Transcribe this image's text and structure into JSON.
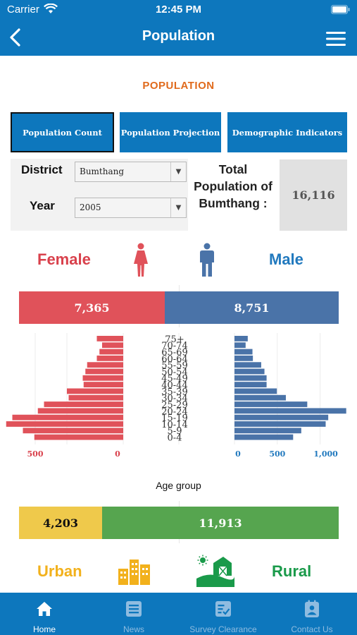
{
  "status_bar": {
    "carrier": "Carrier",
    "time": "12:45 PM"
  },
  "nav": {
    "title": "Population"
  },
  "section_title": "POPULATION",
  "tabs": [
    {
      "label": "Population Count",
      "active": true
    },
    {
      "label": "Population Projection",
      "active": false
    },
    {
      "label": "Demographic Indicators",
      "active": false
    }
  ],
  "filters": {
    "district_label": "District",
    "district_value": "Bumthang",
    "year_label": "Year",
    "year_value": "2005"
  },
  "total": {
    "label": "Total Population of Bumthang :",
    "value": "16,116"
  },
  "gender": {
    "female_label": "Female",
    "male_label": "Male"
  },
  "colors": {
    "header": "#0d77bd",
    "female": "#e0525a",
    "male": "#4a73a8",
    "urban": "#efc94b",
    "rural": "#56a54f"
  },
  "chart_data": [
    {
      "type": "bar",
      "categories": [
        "Female",
        "Male"
      ],
      "values": [
        7365,
        8751
      ],
      "data_labels": [
        "7,365",
        "8,751"
      ]
    },
    {
      "type": "bar",
      "orientation": "horizontal",
      "xlabel": "Age group",
      "categories": [
        "0-4",
        "5-9",
        "10-14",
        "15-19",
        "20-24",
        "25-29",
        "30-34",
        "35-39",
        "40-44",
        "45-49",
        "50-54",
        "55-59",
        "60-64",
        "65-69",
        "70-74",
        "75+"
      ],
      "series": [
        {
          "name": "Female",
          "values": [
            505,
            570,
            665,
            630,
            485,
            450,
            310,
            320,
            225,
            230,
            215,
            205,
            150,
            135,
            120,
            150
          ]
        },
        {
          "name": "Male",
          "values": [
            685,
            780,
            1065,
            1095,
            1305,
            850,
            600,
            495,
            375,
            375,
            350,
            312,
            215,
            210,
            130,
            155
          ]
        }
      ],
      "female_ticks": [
        "500",
        "0"
      ],
      "male_ticks": [
        "0",
        "500",
        "1,000"
      ]
    },
    {
      "type": "bar",
      "categories": [
        "Urban",
        "Rural"
      ],
      "values": [
        4203,
        11913
      ],
      "data_labels": [
        "4,203",
        "11,913"
      ]
    }
  ],
  "settlement": {
    "urban_label": "Urban",
    "rural_label": "Rural"
  },
  "tabbar": [
    {
      "label": "Home",
      "icon": "home-icon",
      "active": true
    },
    {
      "label": "News",
      "icon": "news-icon",
      "active": false
    },
    {
      "label": "Survey Clearance",
      "icon": "survey-clearance-icon",
      "active": false
    },
    {
      "label": "Contact Us",
      "icon": "contact-icon",
      "active": false
    }
  ]
}
